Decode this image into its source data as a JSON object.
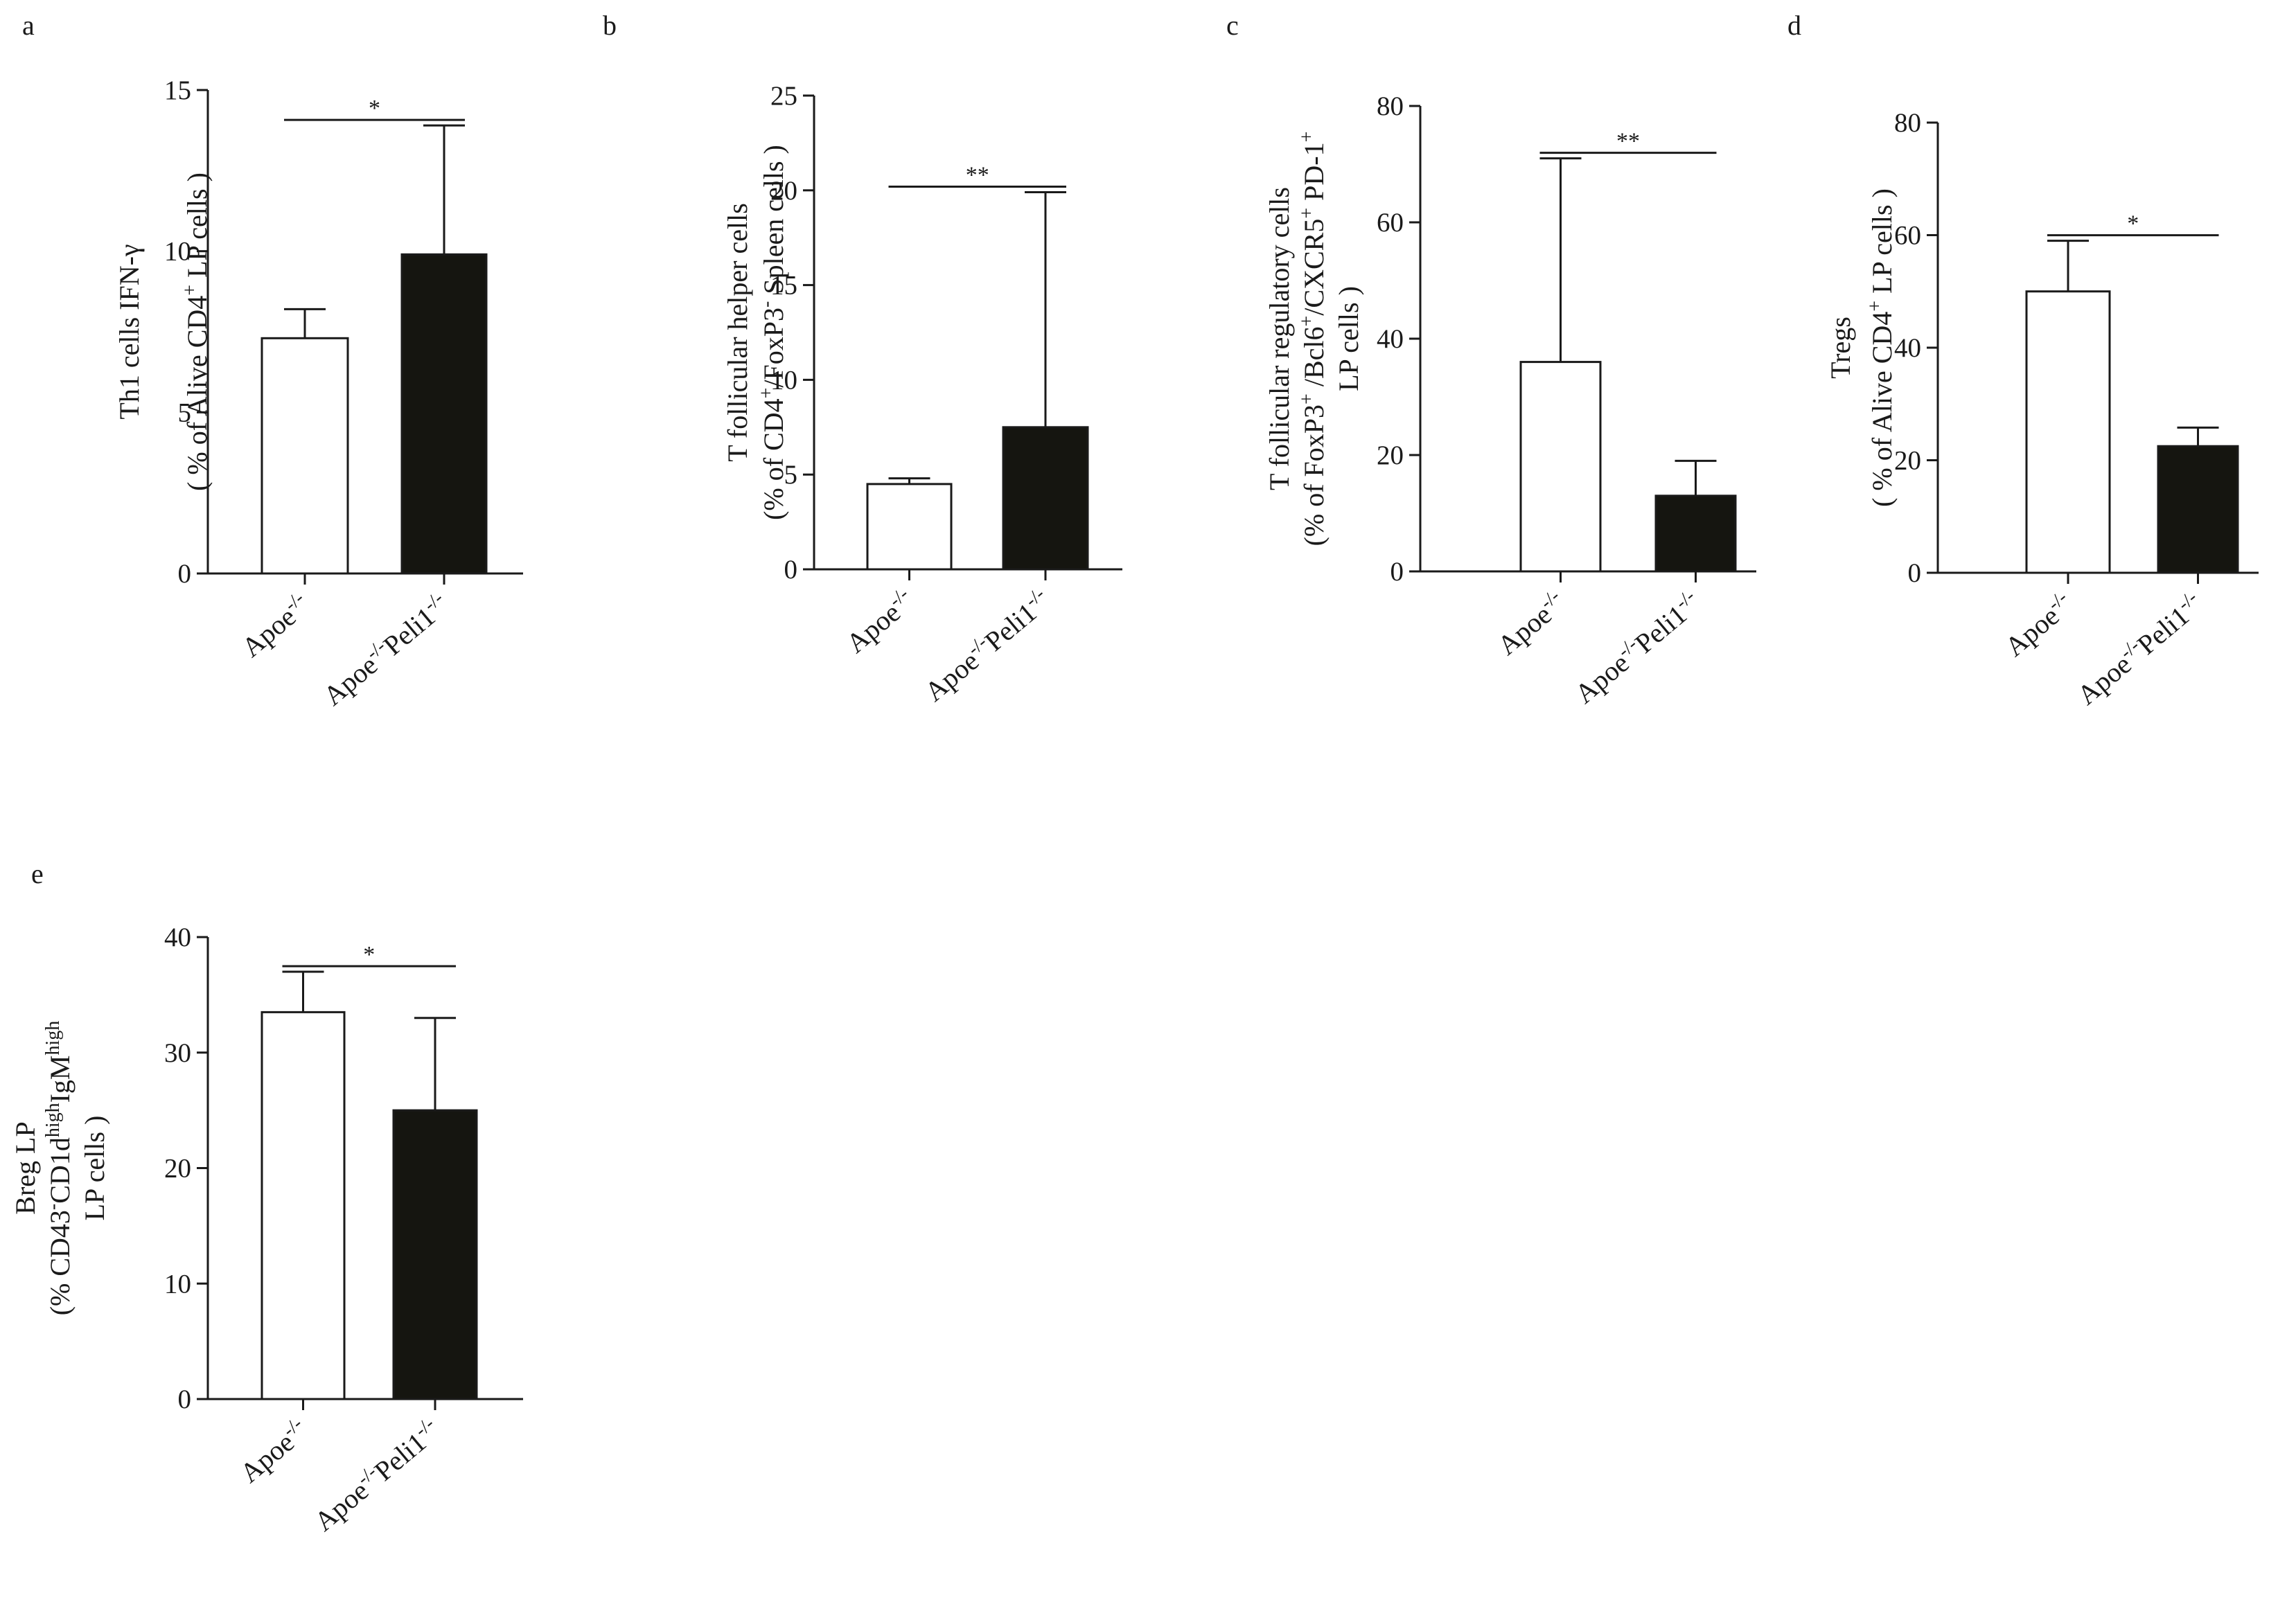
{
  "figure": {
    "panels": [
      "a",
      "b",
      "c",
      "d",
      "e"
    ]
  },
  "chart_data": [
    {
      "panel": "a",
      "type": "bar",
      "categories": [
        "Apoe-/-",
        "Apoe-/-Peli1-/-"
      ],
      "categories_rich": [
        [
          {
            "t": "Apoe"
          },
          {
            "t": "-/-",
            "s": "sup"
          }
        ],
        [
          {
            "t": "Apoe"
          },
          {
            "t": "-/-",
            "s": "sup"
          },
          {
            "t": "Peli1"
          },
          {
            "t": "-/-",
            "s": "sup"
          }
        ]
      ],
      "values": [
        7.3,
        9.9
      ],
      "errors": [
        0.9,
        4.0
      ],
      "fills": [
        "#ffffff",
        "#151510"
      ],
      "ylim": [
        0,
        15
      ],
      "yticks": [
        0,
        5,
        10,
        15
      ],
      "ylabel": "Th1 cells IFN-γ (% of Alive CD4+ LP cells)",
      "ylabel_lines": [
        [
          {
            "t": "Th1 cells IFN-γ"
          }
        ],
        [
          {
            "t": "( % of Alive CD4"
          },
          {
            "t": "+",
            "s": "sup"
          },
          {
            "t": " LP cells )"
          }
        ]
      ],
      "significance": "*"
    },
    {
      "panel": "b",
      "type": "bar",
      "categories": [
        "Apoe-/-",
        "Apoe-/-Peli1-/-"
      ],
      "categories_rich": [
        [
          {
            "t": "Apoe"
          },
          {
            "t": "-/-",
            "s": "sup"
          }
        ],
        [
          {
            "t": "Apoe"
          },
          {
            "t": "-/-",
            "s": "sup"
          },
          {
            "t": "Peli1"
          },
          {
            "t": "-/-",
            "s": "sup"
          }
        ]
      ],
      "values": [
        4.5,
        7.5
      ],
      "errors": [
        0.3,
        12.4
      ],
      "fills": [
        "#ffffff",
        "#151510"
      ],
      "ylim": [
        0,
        25
      ],
      "yticks": [
        0,
        5,
        10,
        15,
        20,
        25
      ],
      "ylabel": "T follicular helper cells (% of CD4+/FoxP3- Spleen cells)",
      "ylabel_lines": [
        [
          {
            "t": "T follicular helper cells"
          }
        ],
        [
          {
            "t": "(% of CD4"
          },
          {
            "t": "+",
            "s": "sup"
          },
          {
            "t": "/FoxP3"
          },
          {
            "t": "-",
            "s": "sup"
          },
          {
            "t": " Spleen cells )"
          }
        ]
      ],
      "significance": "**"
    },
    {
      "panel": "c",
      "type": "bar",
      "categories": [
        "Apoe-/-",
        "Apoe-/-Peli1-/-"
      ],
      "categories_rich": [
        [
          {
            "t": "Apoe"
          },
          {
            "t": "-/-",
            "s": "sup"
          }
        ],
        [
          {
            "t": "Apoe"
          },
          {
            "t": "-/-",
            "s": "sup"
          },
          {
            "t": "Peli1"
          },
          {
            "t": "-/-",
            "s": "sup"
          }
        ]
      ],
      "values": [
        36,
        13
      ],
      "errors": [
        35,
        6
      ],
      "fills": [
        "#ffffff",
        "#151510"
      ],
      "ylim": [
        0,
        80
      ],
      "yticks": [
        0,
        20,
        40,
        60,
        80
      ],
      "ylabel": "T follicular regulatory cells (% of FoxP3+/Bcl6+/CXCR5+ PD-1+ LP cells)",
      "ylabel_lines": [
        [
          {
            "t": "T follicular regulatory cells"
          }
        ],
        [
          {
            "t": "(% of FoxP3"
          },
          {
            "t": "+",
            "s": "sup"
          },
          {
            "t": " /Bcl6"
          },
          {
            "t": "+",
            "s": "sup"
          },
          {
            "t": "/CXCR5"
          },
          {
            "t": "+",
            "s": "sup"
          },
          {
            "t": " PD-1"
          },
          {
            "t": "+",
            "s": "sup"
          }
        ],
        [
          {
            "t": "LP cells )"
          }
        ]
      ],
      "significance": "**"
    },
    {
      "panel": "d",
      "type": "bar",
      "categories": [
        "Apoe-/-",
        "Apoe-/-Peli1-/-"
      ],
      "categories_rich": [
        [
          {
            "t": "Apoe"
          },
          {
            "t": "-/-",
            "s": "sup"
          }
        ],
        [
          {
            "t": "Apoe"
          },
          {
            "t": "-/-",
            "s": "sup"
          },
          {
            "t": "Peli1"
          },
          {
            "t": "-/-",
            "s": "sup"
          }
        ]
      ],
      "values": [
        50,
        22.5
      ],
      "errors": [
        9,
        3.3
      ],
      "fills": [
        "#ffffff",
        "#151510"
      ],
      "ylim": [
        0,
        80
      ],
      "yticks": [
        0,
        20,
        40,
        60,
        80
      ],
      "ylabel": "Tregs (% of Alive CD4+ LP cells)",
      "ylabel_lines": [
        [
          {
            "t": "Tregs"
          }
        ],
        [
          {
            "t": "( % of Alive CD4"
          },
          {
            "t": "+",
            "s": "sup"
          },
          {
            "t": " LP cells )"
          }
        ]
      ],
      "significance": "*"
    },
    {
      "panel": "e",
      "type": "bar",
      "categories": [
        "Apoe-/-",
        "Apoe-/-Peli1-/-"
      ],
      "categories_rich": [
        [
          {
            "t": "Apoe"
          },
          {
            "t": "-/-",
            "s": "sup"
          }
        ],
        [
          {
            "t": "Apoe"
          },
          {
            "t": "-/-",
            "s": "sup"
          },
          {
            "t": "Peli1"
          },
          {
            "t": "-/-",
            "s": "sup"
          }
        ]
      ],
      "values": [
        33.5,
        25
      ],
      "errors": [
        3.5,
        8
      ],
      "fills": [
        "#ffffff",
        "#151510"
      ],
      "ylim": [
        0,
        40
      ],
      "yticks": [
        0,
        10,
        20,
        30,
        40
      ],
      "ylabel": "Breg LP (% CD43-CD1dhighIgMhigh LP cells)",
      "ylabel_lines": [
        [
          {
            "t": "Breg LP"
          }
        ],
        [
          {
            "t": "(% CD43"
          },
          {
            "t": "-",
            "s": "sup"
          },
          {
            "t": "CD1d"
          },
          {
            "t": "high",
            "s": "sup"
          },
          {
            "t": "IgM"
          },
          {
            "t": "high",
            "s": "sup"
          }
        ],
        [
          {
            "t": "LP cells )"
          }
        ]
      ],
      "significance": "*"
    }
  ]
}
